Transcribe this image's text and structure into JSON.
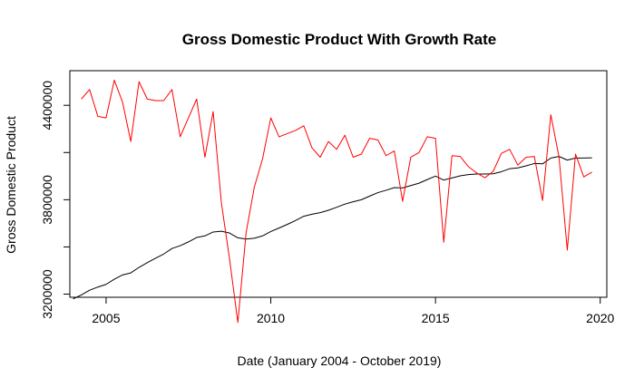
{
  "chart_data": {
    "type": "line",
    "title": "Gross Domestic Product With Growth Rate",
    "xlabel": "Date (January 2004 - October 2019)",
    "ylabel": "Gross Domestic Product",
    "xlim": [
      2003.9,
      2020.2
    ],
    "ylim": [
      3180000,
      4620000
    ],
    "x_ticks": [
      2005,
      2010,
      2015,
      2020
    ],
    "x_tick_labels": [
      "2005",
      "2010",
      "2015",
      "2020"
    ],
    "y_ticks": [
      3200000,
      3800000,
      4400000
    ],
    "y_tick_labels": [
      "3200000",
      "3800000",
      "4400000"
    ],
    "grid": false,
    "legend": "none",
    "series": [
      {
        "color": "#000000",
        "x": [
          2004.0,
          2004.25,
          2004.5,
          2004.75,
          2005.0,
          2005.25,
          2005.5,
          2005.75,
          2006.0,
          2006.25,
          2006.5,
          2006.75,
          2007.0,
          2007.25,
          2007.5,
          2007.75,
          2008.0,
          2008.25,
          2008.5,
          2008.75,
          2009.0,
          2009.25,
          2009.5,
          2009.75,
          2010.0,
          2010.25,
          2010.5,
          2010.75,
          2011.0,
          2011.25,
          2011.5,
          2011.75,
          2012.0,
          2012.25,
          2012.5,
          2012.75,
          2013.0,
          2013.25,
          2013.5,
          2013.75,
          2014.0,
          2014.25,
          2014.5,
          2014.75,
          2015.0,
          2015.25,
          2015.5,
          2015.75,
          2016.0,
          2016.25,
          2016.5,
          2016.75,
          2017.0,
          2017.25,
          2017.5,
          2017.75,
          2018.0,
          2018.25,
          2018.5,
          2018.75,
          2019.0,
          2019.25,
          2019.5,
          2019.75
        ],
        "values": [
          3170000,
          3195000,
          3225000,
          3245000,
          3262000,
          3295000,
          3322000,
          3335000,
          3370000,
          3400000,
          3428000,
          3455000,
          3490000,
          3508000,
          3532000,
          3560000,
          3570000,
          3595000,
          3600000,
          3588000,
          3558000,
          3550000,
          3555000,
          3570000,
          3598000,
          3620000,
          3643000,
          3668000,
          3695000,
          3708000,
          3718000,
          3733000,
          3752000,
          3772000,
          3787000,
          3800000,
          3823000,
          3845000,
          3860000,
          3877000,
          3875000,
          3890000,
          3905000,
          3928000,
          3950000,
          3925000,
          3938000,
          3952000,
          3960000,
          3963000,
          3963000,
          3965000,
          3978000,
          3997000,
          4002000,
          4015000,
          4030000,
          4028000,
          4065000,
          4075000,
          4052000,
          4065000,
          4065000,
          4066000
        ]
      },
      {
        "color": "#ff0000",
        "x": [
          2004.25,
          2004.5,
          2004.75,
          2005.0,
          2005.25,
          2005.5,
          2005.75,
          2006.0,
          2006.25,
          2006.5,
          2006.75,
          2007.0,
          2007.25,
          2007.5,
          2007.75,
          2008.0,
          2008.25,
          2008.5,
          2008.75,
          2009.0,
          2009.25,
          2009.5,
          2009.75,
          2010.0,
          2010.25,
          2010.5,
          2010.75,
          2011.0,
          2011.25,
          2011.5,
          2011.75,
          2012.0,
          2012.25,
          2012.5,
          2012.75,
          2013.0,
          2013.25,
          2013.5,
          2013.75,
          2014.0,
          2014.25,
          2014.5,
          2014.75,
          2015.0,
          2015.25,
          2015.5,
          2015.75,
          2016.0,
          2016.25,
          2016.5,
          2016.75,
          2017.0,
          2017.25,
          2017.5,
          2017.75,
          2018.0,
          2018.25,
          2018.5,
          2018.75,
          2019.0,
          2019.25,
          2019.5,
          2019.75
        ],
        "values": [
          4440000,
          4500000,
          4330000,
          4320000,
          4560000,
          4420000,
          4170000,
          4550000,
          4440000,
          4430000,
          4430000,
          4500000,
          4200000,
          4320000,
          4440000,
          4070000,
          4360000,
          3780000,
          3420000,
          3020000,
          3590000,
          3880000,
          4060000,
          4320000,
          4200000,
          4220000,
          4240000,
          4270000,
          4130000,
          4070000,
          4170000,
          4120000,
          4210000,
          4070000,
          4090000,
          4190000,
          4180000,
          4080000,
          4110000,
          3790000,
          4070000,
          4100000,
          4200000,
          4190000,
          3530000,
          4080000,
          4075000,
          4010000,
          3970000,
          3940000,
          3980000,
          4095000,
          4120000,
          4020000,
          4070000,
          4075000,
          3795000,
          4340000,
          4070000,
          3480000,
          4090000,
          3945000,
          3975000
        ]
      }
    ]
  }
}
